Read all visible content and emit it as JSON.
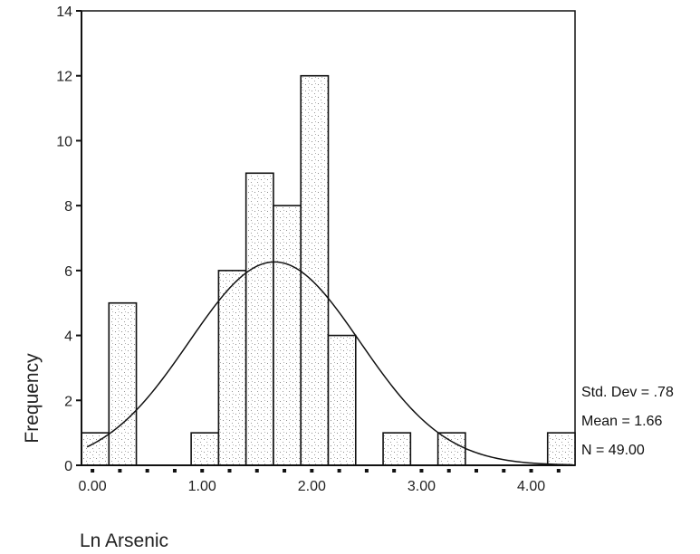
{
  "chart_data": {
    "type": "bar",
    "subtype": "histogram",
    "xlabel": "Ln Arsenic",
    "ylabel": "Frequency",
    "xlim": [
      -0.1,
      4.4
    ],
    "ylim": [
      0,
      14
    ],
    "x_ticks": [
      "0.00",
      "1.00",
      "2.00",
      "3.00",
      "4.00"
    ],
    "x_tick_values": [
      0,
      1,
      2,
      3,
      4
    ],
    "y_ticks": [
      "0",
      "2",
      "4",
      "6",
      "8",
      "10",
      "12",
      "14"
    ],
    "y_tick_values": [
      0,
      2,
      4,
      6,
      8,
      10,
      12,
      14
    ],
    "bin_width": 0.25,
    "bins": [
      {
        "x0": -0.1,
        "x1": 0.15,
        "count": 1
      },
      {
        "x0": 0.15,
        "x1": 0.4,
        "count": 5
      },
      {
        "x0": 0.9,
        "x1": 1.15,
        "count": 1
      },
      {
        "x0": 1.15,
        "x1": 1.4,
        "count": 6
      },
      {
        "x0": 1.4,
        "x1": 1.65,
        "count": 9
      },
      {
        "x0": 1.65,
        "x1": 1.9,
        "count": 8
      },
      {
        "x0": 1.9,
        "x1": 2.15,
        "count": 12
      },
      {
        "x0": 2.15,
        "x1": 2.4,
        "count": 4
      },
      {
        "x0": 2.65,
        "x1": 2.9,
        "count": 1
      },
      {
        "x0": 3.15,
        "x1": 3.4,
        "count": 1
      },
      {
        "x0": 4.15,
        "x1": 4.4,
        "count": 1
      }
    ],
    "normal_curve": {
      "mean": 1.66,
      "std_dev": 0.78,
      "n": 49
    },
    "legend_position": "right",
    "stats": [
      "Std. Dev = .78",
      "Mean = 1.66",
      "N = 49.00"
    ],
    "grid": false
  }
}
